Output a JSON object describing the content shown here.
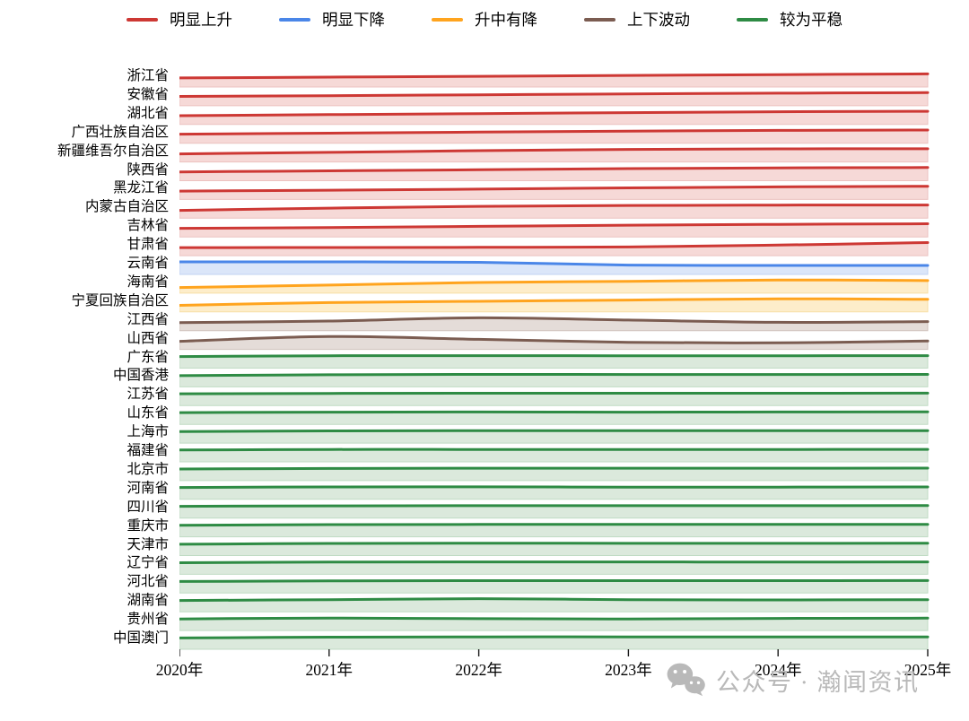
{
  "watermark": {
    "text": "公众号 · 瀚闻资讯",
    "icon": "wechat-icon",
    "color": "#b9b9b9"
  },
  "chart_data": {
    "type": "area",
    "subtype": "ridgeline-trend-rows",
    "title": "",
    "x": [
      2020,
      2021,
      2022,
      2023,
      2024,
      2025
    ],
    "x_labels": [
      "2020年",
      "2021年",
      "2022年",
      "2023年",
      "2024年",
      "2025年"
    ],
    "ylabel": "",
    "grid": false,
    "legend_position": "top-center",
    "value_note": "relative trend level per row, 0-1 (no value axis shown)",
    "legend": [
      {
        "label": "明显上升",
        "color": "#cd3834"
      },
      {
        "label": "明显下降",
        "color": "#4a86e8"
      },
      {
        "label": "升中有降",
        "color": "#ffa41e"
      },
      {
        "label": "上下波动",
        "color": "#7b5c51"
      },
      {
        "label": "较为平稳",
        "color": "#2e8b44"
      }
    ],
    "palette": {
      "明显上升": {
        "line": "#cd3834",
        "fill": "#f6d9d7",
        "edge": "#ecc2c0"
      },
      "明显下降": {
        "line": "#4a86e8",
        "fill": "#dbe6f9",
        "edge": "#c2d3f2"
      },
      "升中有降": {
        "line": "#ffa41e",
        "fill": "#fdedca",
        "edge": "#f7dfa6"
      },
      "上下波动": {
        "line": "#7b5c51",
        "fill": "#e4dcd8",
        "edge": "#d0c2bc"
      },
      "较为平稳": {
        "line": "#2e8b44",
        "fill": "#dbe9dc",
        "edge": "#c0dbc4"
      }
    },
    "series": [
      {
        "name": "浙江省",
        "trend": "明显上升",
        "values": [
          0.58,
          0.64,
          0.71,
          0.78,
          0.84,
          0.9
        ]
      },
      {
        "name": "安徽省",
        "trend": "明显上升",
        "values": [
          0.6,
          0.66,
          0.73,
          0.8,
          0.86,
          0.9
        ]
      },
      {
        "name": "湖北省",
        "trend": "明显上升",
        "values": [
          0.56,
          0.64,
          0.72,
          0.8,
          0.87,
          0.91
        ]
      },
      {
        "name": "广西壮族自治区",
        "trend": "明显上升",
        "values": [
          0.58,
          0.66,
          0.74,
          0.82,
          0.88,
          0.91
        ]
      },
      {
        "name": "新疆维吾尔自治区",
        "trend": "明显上升",
        "values": [
          0.5,
          0.62,
          0.76,
          0.86,
          0.9,
          0.91
        ]
      },
      {
        "name": "陕西省",
        "trend": "明显上升",
        "values": [
          0.56,
          0.64,
          0.73,
          0.82,
          0.88,
          0.91
        ]
      },
      {
        "name": "黑龙江省",
        "trend": "明显上升",
        "values": [
          0.52,
          0.59,
          0.68,
          0.78,
          0.86,
          0.91
        ]
      },
      {
        "name": "内蒙古自治区",
        "trend": "明显上升",
        "values": [
          0.48,
          0.66,
          0.8,
          0.87,
          0.9,
          0.91
        ]
      },
      {
        "name": "吉林省",
        "trend": "明显上升",
        "values": [
          0.54,
          0.61,
          0.7,
          0.79,
          0.86,
          0.91
        ]
      },
      {
        "name": "甘肃省",
        "trend": "明显上升",
        "values": [
          0.5,
          0.51,
          0.52,
          0.55,
          0.7,
          0.9
        ]
      },
      {
        "name": "云南省",
        "trend": "明显下降",
        "values": [
          0.86,
          0.86,
          0.82,
          0.6,
          0.57,
          0.57
        ]
      },
      {
        "name": "海南省",
        "trend": "升中有降",
        "values": [
          0.31,
          0.5,
          0.71,
          0.8,
          0.91,
          0.86
        ]
      },
      {
        "name": "宁夏回族自治区",
        "trend": "升中有降",
        "values": [
          0.38,
          0.6,
          0.7,
          0.8,
          0.9,
          0.86
        ]
      },
      {
        "name": "江西省",
        "trend": "上下波动",
        "values": [
          0.5,
          0.62,
          0.88,
          0.7,
          0.52,
          0.58
        ]
      },
      {
        "name": "山西省",
        "trend": "上下波动",
        "values": [
          0.5,
          0.88,
          0.66,
          0.42,
          0.38,
          0.52
        ]
      },
      {
        "name": "广东省",
        "trend": "较为平稳",
        "values": [
          0.78,
          0.84,
          0.85,
          0.84,
          0.84,
          0.85
        ]
      },
      {
        "name": "中国香港",
        "trend": "较为平稳",
        "values": [
          0.75,
          0.82,
          0.85,
          0.84,
          0.84,
          0.85
        ]
      },
      {
        "name": "江苏省",
        "trend": "较为平稳",
        "values": [
          0.8,
          0.83,
          0.84,
          0.84,
          0.84,
          0.85
        ]
      },
      {
        "name": "山东省",
        "trend": "较为平稳",
        "values": [
          0.79,
          0.83,
          0.84,
          0.83,
          0.84,
          0.85
        ]
      },
      {
        "name": "上海市",
        "trend": "较为平稳",
        "values": [
          0.78,
          0.83,
          0.85,
          0.84,
          0.84,
          0.85
        ]
      },
      {
        "name": "福建省",
        "trend": "较为平稳",
        "values": [
          0.8,
          0.84,
          0.84,
          0.84,
          0.84,
          0.85
        ]
      },
      {
        "name": "北京市",
        "trend": "较为平稳",
        "values": [
          0.78,
          0.82,
          0.84,
          0.84,
          0.84,
          0.85
        ]
      },
      {
        "name": "河南省",
        "trend": "较为平稳",
        "values": [
          0.8,
          0.84,
          0.85,
          0.83,
          0.83,
          0.84
        ]
      },
      {
        "name": "四川省",
        "trend": "较为平稳",
        "values": [
          0.79,
          0.83,
          0.84,
          0.84,
          0.84,
          0.85
        ]
      },
      {
        "name": "重庆市",
        "trend": "较为平稳",
        "values": [
          0.78,
          0.83,
          0.84,
          0.84,
          0.84,
          0.85
        ]
      },
      {
        "name": "天津市",
        "trend": "较为平稳",
        "values": [
          0.76,
          0.82,
          0.84,
          0.83,
          0.83,
          0.84
        ]
      },
      {
        "name": "辽宁省",
        "trend": "较为平稳",
        "values": [
          0.78,
          0.83,
          0.84,
          0.84,
          0.83,
          0.84
        ]
      },
      {
        "name": "河北省",
        "trend": "较为平稳",
        "values": [
          0.78,
          0.82,
          0.84,
          0.84,
          0.84,
          0.85
        ]
      },
      {
        "name": "湖南省",
        "trend": "较为平稳",
        "values": [
          0.76,
          0.82,
          0.9,
          0.82,
          0.8,
          0.82
        ]
      },
      {
        "name": "贵州省",
        "trend": "较为平稳",
        "values": [
          0.78,
          0.85,
          0.8,
          0.78,
          0.82,
          0.84
        ]
      },
      {
        "name": "中国澳门",
        "trend": "较为平稳",
        "values": [
          0.76,
          0.82,
          0.84,
          0.84,
          0.84,
          0.84
        ]
      }
    ]
  }
}
